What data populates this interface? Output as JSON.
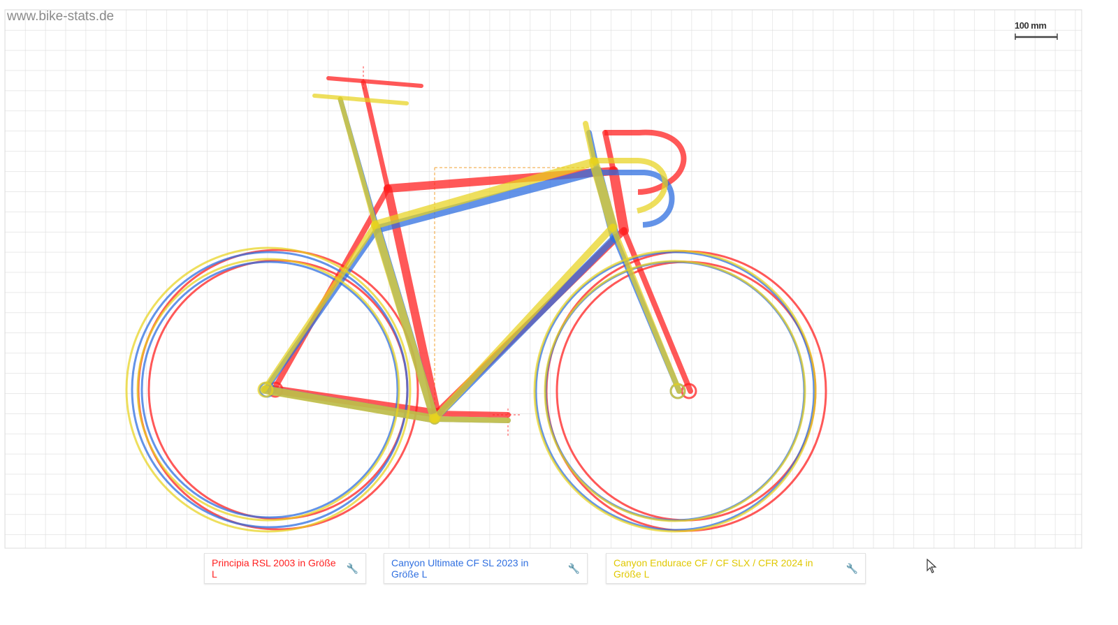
{
  "watermark": "www.bike-stats.de",
  "scale": {
    "label": "100 mm"
  },
  "colors": {
    "grid": "#dcdcdc",
    "bike1": "#ff2a2a",
    "bike2": "#3a78e0",
    "bike3": "#e8d21f",
    "reference": "#f0a030"
  },
  "bikes": [
    {
      "label": "Principia RSL 2003 in Größe L",
      "color": "#ff2020",
      "icon": "wrench-icon"
    },
    {
      "label": "Canyon Ultimate CF SL 2023 in Größe L",
      "color": "#2f6fe0",
      "icon": "wrench-icon"
    },
    {
      "label": "Canyon Endurace CF / CF SLX / CFR 2024 in Größe L",
      "color": "#e8d21f",
      "icon": "wrench-icon"
    }
  ]
}
